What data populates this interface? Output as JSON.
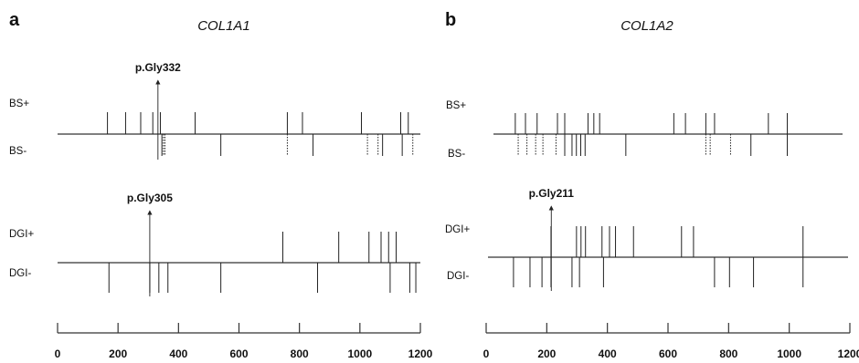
{
  "chart_data": [
    {
      "type": "line",
      "panel": "a",
      "title": "COL1A1",
      "xlim": [
        0,
        1200
      ],
      "ticks": [
        0,
        200,
        400,
        600,
        800,
        1000,
        1200
      ],
      "tracks": [
        {
          "name": "BS",
          "upper_label": "BS+",
          "lower_label": "BS-",
          "upper": {
            "solid": [
              165,
              225,
              275,
              315,
              340,
              455,
              760,
              810,
              1005,
              1135,
              1160
            ],
            "dotted": []
          },
          "lower": {
            "solid": [
              345,
              540,
              845,
              1075,
              1140
            ],
            "dotted": [
              350,
              355,
              760,
              1025,
              1060,
              1175
            ]
          },
          "callout": {
            "label": "p.Gly332",
            "position": 332
          }
        },
        {
          "name": "DGI",
          "upper_label": "DGI+",
          "lower_label": "DGI-",
          "upper": {
            "solid": [
              745,
              930,
              1030,
              1070,
              1095,
              1120
            ],
            "dotted": []
          },
          "lower": {
            "solid": [
              170,
              305,
              335,
              365,
              540,
              860,
              1100,
              1165,
              1185
            ],
            "dotted": []
          },
          "callout": {
            "label": "p.Gly305",
            "position": 305
          }
        }
      ]
    },
    {
      "type": "line",
      "panel": "b",
      "title": "COL1A2",
      "xlim": [
        0,
        1200
      ],
      "ticks": [
        0,
        200,
        400,
        600,
        800,
        1000,
        1200
      ],
      "tracks": [
        {
          "name": "BS",
          "upper_label": "BS+",
          "lower_label": "BS-",
          "upper": {
            "solid": [
              75,
              110,
              150,
              220,
              245,
              325,
              345,
              365,
              620,
              660,
              730,
              760,
              945,
              1010
            ],
            "dotted": []
          },
          "lower": {
            "solid": [
              245,
              270,
              285,
              300,
              315,
              455,
              885,
              1010
            ],
            "dotted": [
              85,
              115,
              145,
              170,
              215,
              730,
              745,
              815
            ]
          },
          "callout": null
        },
        {
          "name": "DGI",
          "upper_label": "DGI+",
          "lower_label": "DGI-",
          "upper": {
            "solid": [
              210,
              295,
              310,
              325,
              380,
              405,
              425,
              485,
              645,
              685,
              1050
            ],
            "dotted": []
          },
          "lower": {
            "solid": [
              85,
              140,
              180,
              210,
              280,
              305,
              385,
              755,
              805,
              885,
              1050
            ],
            "dotted": []
          },
          "callout": {
            "label": "p.Gly211",
            "position": 211
          }
        }
      ]
    }
  ]
}
